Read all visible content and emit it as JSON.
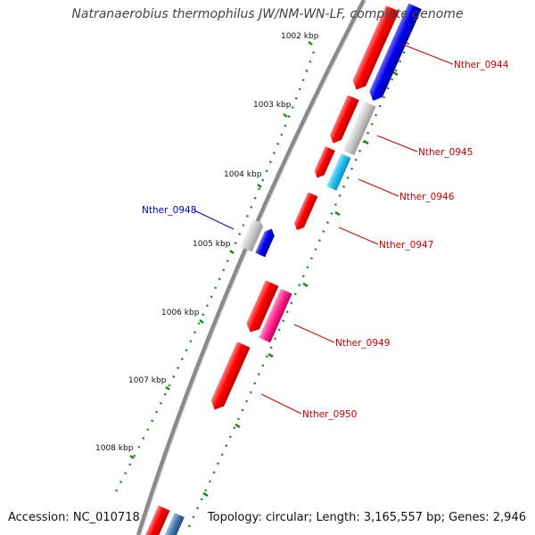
{
  "title": "Natranaerobius thermophilus JW/NM-WN-LF, complete genome",
  "footer": {
    "accession": "Accession: NC_010718",
    "summary": "Topology: circular; Length: 3,165,557 bp; Genes: 2,946"
  },
  "scale_labels": [
    "1002 kbp",
    "1003 kbp",
    "1004 kbp",
    "1005 kbp",
    "1006 kbp",
    "1007 kbp",
    "1008 kbp"
  ],
  "colors": {
    "red_gene": "#ff0000",
    "blue_gene": "#0000ee",
    "grey_gene": "#c8c8c8",
    "cyan_gene": "#22bbee",
    "magenta_gene": "#ff2288",
    "steel_gene": "#4477aa",
    "tick": "#228822",
    "backbone": "#888888",
    "red_label": "#cc0000",
    "blue_label": "#0000cc"
  },
  "gene_labels": [
    {
      "name": "Nther_0944",
      "color": "red"
    },
    {
      "name": "Nther_0945",
      "color": "red"
    },
    {
      "name": "Nther_0946",
      "color": "red"
    },
    {
      "name": "Nther_0947",
      "color": "red"
    },
    {
      "name": "Nther_0948",
      "color": "blue"
    },
    {
      "name": "Nther_0949",
      "color": "red"
    },
    {
      "name": "Nther_0950",
      "color": "red"
    }
  ]
}
